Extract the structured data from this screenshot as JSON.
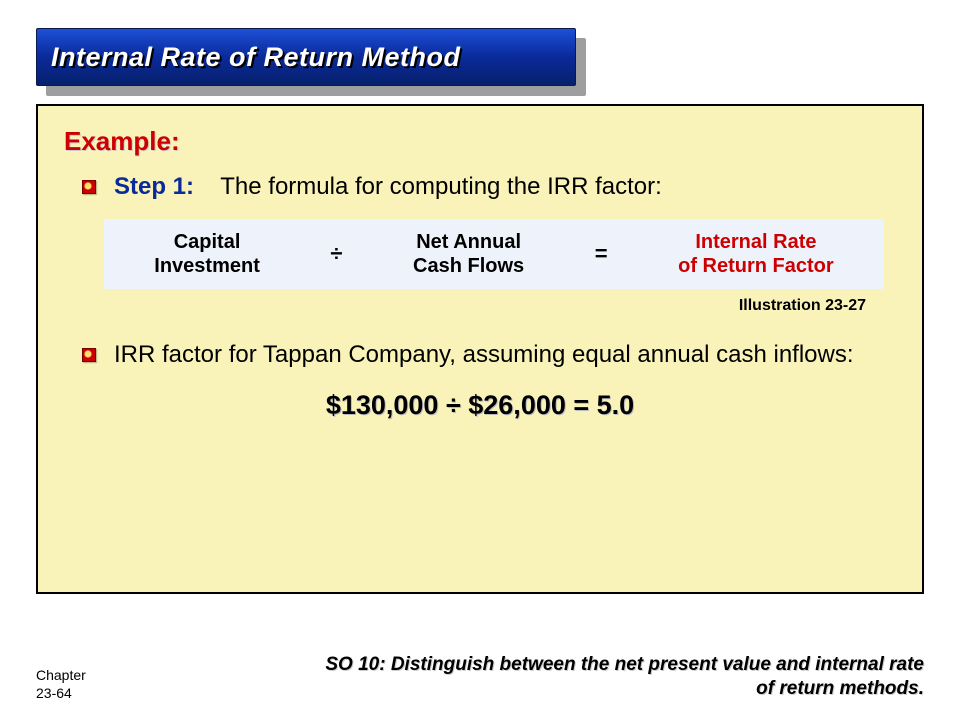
{
  "colors": {
    "title_bg": "#0a2a9a",
    "title_bg_grad_top": "#1d4fd6",
    "title_bg_grad_bottom": "#06206b",
    "title_text": "#ffffff",
    "accent_red": "#cc0000",
    "step_blue": "#0a2a9a",
    "content_bg": "#faf3b9",
    "formula_bg": "#eef3fb",
    "formula_result": "#cc0000",
    "page_bg": "#ffffff"
  },
  "title": "Internal Rate of Return Method",
  "example_label": "Example:",
  "step1": {
    "label": "Step 1:",
    "text": "The formula for computing the IRR factor:"
  },
  "formula": {
    "left_line1": "Capital",
    "left_line2": "Investment",
    "op1": "÷",
    "mid_line1": "Net Annual",
    "mid_line2": "Cash Flows",
    "op2": "=",
    "right_line1": "Internal Rate",
    "right_line2": "of Return Factor"
  },
  "illustration_label": "Illustration 23-27",
  "step2_text": "IRR factor for Tappan Company, assuming equal annual cash inflows:",
  "calc_line": "$130,000 ÷ $26,000 = 5.0",
  "chapter_line1": "Chapter",
  "chapter_line2": "23-64",
  "so_text": "SO 10:   Distinguish between the net present value and internal rate of return methods."
}
